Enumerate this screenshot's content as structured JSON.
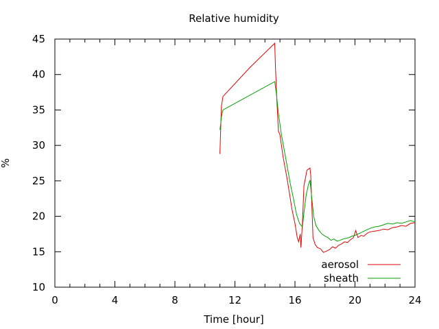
{
  "chart_data": {
    "type": "line",
    "title": "Relative humidity",
    "xlabel": "Time [hour]",
    "ylabel": "%",
    "xlim": [
      0,
      24
    ],
    "ylim": [
      10,
      45
    ],
    "xticks": [
      0,
      4,
      8,
      12,
      16,
      20,
      24
    ],
    "yticks": [
      10,
      15,
      20,
      25,
      30,
      35,
      40,
      45
    ],
    "grid": false,
    "legend_position": "bottom-right",
    "series": [
      {
        "name": "aerosol",
        "color": "#e00000",
        "points": [
          [
            11.0,
            28.8
          ],
          [
            11.05,
            32.2
          ],
          [
            11.1,
            35.5
          ],
          [
            11.2,
            36.9
          ],
          [
            13.0,
            41.0
          ],
          [
            14.65,
            44.4
          ],
          [
            14.7,
            41.0
          ],
          [
            14.8,
            36.0
          ],
          [
            14.9,
            32.0
          ],
          [
            15.0,
            31.5
          ],
          [
            15.2,
            28.5
          ],
          [
            15.5,
            25.0
          ],
          [
            15.8,
            21.0
          ],
          [
            16.0,
            19.0
          ],
          [
            16.15,
            17.0
          ],
          [
            16.25,
            16.4
          ],
          [
            16.35,
            17.5
          ],
          [
            16.4,
            15.6
          ],
          [
            16.5,
            19.0
          ],
          [
            16.6,
            24.3
          ],
          [
            16.8,
            26.5
          ],
          [
            17.0,
            26.8
          ],
          [
            17.05,
            25.8
          ],
          [
            17.15,
            20.0
          ],
          [
            17.2,
            17.0
          ],
          [
            17.35,
            16.0
          ],
          [
            17.5,
            15.6
          ],
          [
            17.7,
            15.4
          ],
          [
            17.9,
            14.9
          ],
          [
            18.1,
            15.1
          ],
          [
            18.3,
            15.3
          ],
          [
            18.5,
            15.7
          ],
          [
            18.7,
            15.5
          ],
          [
            18.9,
            15.9
          ],
          [
            19.1,
            16.1
          ],
          [
            19.3,
            16.4
          ],
          [
            19.5,
            16.3
          ],
          [
            19.7,
            16.7
          ],
          [
            19.9,
            17.0
          ],
          [
            20.05,
            18.0
          ],
          [
            20.2,
            17.0
          ],
          [
            20.4,
            17.3
          ],
          [
            20.6,
            17.2
          ],
          [
            20.8,
            17.6
          ],
          [
            21.0,
            17.8
          ],
          [
            21.3,
            17.9
          ],
          [
            21.6,
            18.0
          ],
          [
            21.9,
            18.2
          ],
          [
            22.2,
            18.1
          ],
          [
            22.5,
            18.4
          ],
          [
            22.8,
            18.5
          ],
          [
            23.1,
            18.7
          ],
          [
            23.4,
            18.6
          ],
          [
            23.7,
            19.0
          ],
          [
            24.0,
            19.1
          ]
        ]
      },
      {
        "name": "sheath",
        "color": "#00a000",
        "points": [
          [
            11.0,
            32.2
          ],
          [
            11.05,
            33.0
          ],
          [
            11.1,
            34.0
          ],
          [
            11.2,
            35.0
          ],
          [
            14.65,
            39.0
          ],
          [
            14.75,
            37.5
          ],
          [
            14.9,
            34.5
          ],
          [
            15.1,
            31.5
          ],
          [
            15.4,
            28.0
          ],
          [
            15.7,
            24.5
          ],
          [
            15.9,
            22.5
          ],
          [
            16.1,
            20.3
          ],
          [
            16.3,
            19.0
          ],
          [
            16.5,
            18.5
          ],
          [
            16.6,
            20.5
          ],
          [
            16.75,
            23.0
          ],
          [
            16.9,
            24.5
          ],
          [
            17.0,
            25.1
          ],
          [
            17.1,
            23.0
          ],
          [
            17.25,
            20.0
          ],
          [
            17.4,
            18.7
          ],
          [
            17.6,
            18.0
          ],
          [
            17.8,
            17.5
          ],
          [
            18.0,
            17.2
          ],
          [
            18.2,
            17.0
          ],
          [
            18.4,
            16.6
          ],
          [
            18.6,
            16.8
          ],
          [
            18.8,
            16.5
          ],
          [
            19.0,
            16.6
          ],
          [
            19.2,
            16.8
          ],
          [
            19.4,
            16.9
          ],
          [
            19.6,
            17.0
          ],
          [
            19.8,
            17.2
          ],
          [
            20.0,
            17.3
          ],
          [
            20.2,
            17.5
          ],
          [
            20.4,
            17.7
          ],
          [
            20.6,
            17.9
          ],
          [
            20.8,
            18.1
          ],
          [
            21.0,
            18.3
          ],
          [
            21.3,
            18.5
          ],
          [
            21.6,
            18.6
          ],
          [
            21.9,
            18.8
          ],
          [
            22.2,
            19.0
          ],
          [
            22.5,
            18.9
          ],
          [
            22.8,
            19.1
          ],
          [
            23.1,
            19.0
          ],
          [
            23.4,
            19.2
          ],
          [
            23.7,
            19.4
          ],
          [
            24.0,
            19.2
          ]
        ]
      }
    ]
  }
}
